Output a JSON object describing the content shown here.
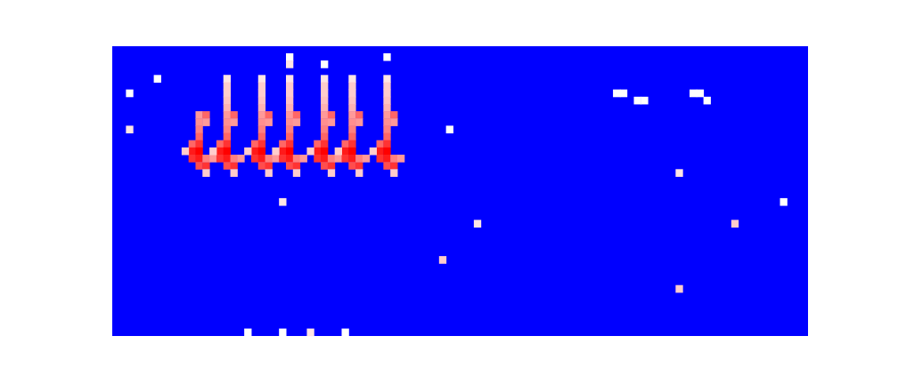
{
  "chart_data": {
    "type": "heatmap",
    "tick_labels": false,
    "columns": 100,
    "rows": 40,
    "color_range": [
      0,
      1
    ],
    "colors": [
      "#0000ff",
      "#ffffff",
      "#ff0000"
    ],
    "cells": [
      [
        12,
        30,
        0.7
      ],
      [
        12,
        29,
        0.72
      ],
      [
        12,
        28,
        0.75
      ],
      [
        13,
        30,
        0.8
      ],
      [
        13,
        29,
        0.7
      ],
      [
        11,
        26,
        0.8
      ],
      [
        11,
        25,
        0.95
      ],
      [
        11,
        24,
        0.9
      ],
      [
        12,
        27,
        0.8
      ],
      [
        12,
        26,
        0.9
      ],
      [
        12,
        25,
        1
      ],
      [
        12,
        24,
        0.95
      ],
      [
        12,
        23,
        0.85
      ],
      [
        13,
        23,
        0.9
      ],
      [
        13,
        24,
        0.75
      ],
      [
        14,
        24,
        0.7
      ],
      [
        13,
        22,
        0.6
      ],
      [
        10,
        25,
        0.6
      ],
      [
        16,
        35,
        0.55
      ],
      [
        16,
        34,
        0.6
      ],
      [
        16,
        33,
        0.6
      ],
      [
        16,
        32,
        0.62
      ],
      [
        16,
        31,
        0.65
      ],
      [
        16,
        30,
        0.7
      ],
      [
        16,
        29,
        0.72
      ],
      [
        16,
        28,
        0.75
      ],
      [
        17,
        30,
        0.8
      ],
      [
        17,
        29,
        0.7
      ],
      [
        15,
        26,
        0.8
      ],
      [
        15,
        25,
        0.95
      ],
      [
        15,
        24,
        0.9
      ],
      [
        16,
        27,
        0.8
      ],
      [
        16,
        26,
        0.9
      ],
      [
        16,
        25,
        1
      ],
      [
        16,
        24,
        0.95
      ],
      [
        16,
        23,
        0.85
      ],
      [
        17,
        23,
        0.9
      ],
      [
        17,
        24,
        0.75
      ],
      [
        18,
        24,
        0.7
      ],
      [
        17,
        22,
        0.6
      ],
      [
        14,
        25,
        0.6
      ],
      [
        21,
        35,
        0.55
      ],
      [
        21,
        34,
        0.6
      ],
      [
        21,
        33,
        0.6
      ],
      [
        21,
        32,
        0.62
      ],
      [
        21,
        31,
        0.65
      ],
      [
        21,
        30,
        0.7
      ],
      [
        21,
        29,
        0.72
      ],
      [
        21,
        28,
        0.75
      ],
      [
        22,
        30,
        0.8
      ],
      [
        22,
        29,
        0.7
      ],
      [
        20,
        26,
        0.8
      ],
      [
        20,
        25,
        0.95
      ],
      [
        20,
        24,
        0.9
      ],
      [
        21,
        27,
        0.8
      ],
      [
        21,
        26,
        0.9
      ],
      [
        21,
        25,
        1
      ],
      [
        21,
        24,
        0.95
      ],
      [
        21,
        23,
        0.85
      ],
      [
        22,
        23,
        0.9
      ],
      [
        22,
        24,
        0.75
      ],
      [
        23,
        24,
        0.7
      ],
      [
        22,
        22,
        0.6
      ],
      [
        19,
        25,
        0.6
      ],
      [
        25,
        35,
        0.55
      ],
      [
        25,
        34,
        0.6
      ],
      [
        25,
        33,
        0.6
      ],
      [
        25,
        32,
        0.62
      ],
      [
        25,
        31,
        0.65
      ],
      [
        25,
        30,
        0.7
      ],
      [
        25,
        29,
        0.72
      ],
      [
        25,
        28,
        0.75
      ],
      [
        26,
        30,
        0.8
      ],
      [
        26,
        29,
        0.7
      ],
      [
        24,
        26,
        0.8
      ],
      [
        24,
        25,
        0.95
      ],
      [
        24,
        24,
        0.9
      ],
      [
        25,
        27,
        0.8
      ],
      [
        25,
        26,
        0.9
      ],
      [
        25,
        25,
        1
      ],
      [
        25,
        24,
        0.95
      ],
      [
        25,
        23,
        0.85
      ],
      [
        26,
        23,
        0.9
      ],
      [
        26,
        24,
        0.75
      ],
      [
        27,
        24,
        0.7
      ],
      [
        26,
        22,
        0.6
      ],
      [
        23,
        25,
        0.6
      ],
      [
        30,
        35,
        0.55
      ],
      [
        30,
        34,
        0.6
      ],
      [
        30,
        33,
        0.6
      ],
      [
        30,
        32,
        0.62
      ],
      [
        30,
        31,
        0.65
      ],
      [
        30,
        30,
        0.7
      ],
      [
        30,
        29,
        0.72
      ],
      [
        30,
        28,
        0.75
      ],
      [
        31,
        30,
        0.8
      ],
      [
        31,
        29,
        0.7
      ],
      [
        29,
        26,
        0.8
      ],
      [
        29,
        25,
        0.95
      ],
      [
        29,
        24,
        0.9
      ],
      [
        30,
        27,
        0.8
      ],
      [
        30,
        26,
        0.9
      ],
      [
        30,
        25,
        1
      ],
      [
        30,
        24,
        0.95
      ],
      [
        30,
        23,
        0.85
      ],
      [
        31,
        23,
        0.9
      ],
      [
        31,
        24,
        0.75
      ],
      [
        32,
        24,
        0.7
      ],
      [
        31,
        22,
        0.6
      ],
      [
        28,
        25,
        0.6
      ],
      [
        34,
        35,
        0.55
      ],
      [
        34,
        34,
        0.6
      ],
      [
        34,
        33,
        0.6
      ],
      [
        34,
        32,
        0.62
      ],
      [
        34,
        31,
        0.65
      ],
      [
        34,
        30,
        0.7
      ],
      [
        34,
        29,
        0.72
      ],
      [
        34,
        28,
        0.75
      ],
      [
        35,
        30,
        0.8
      ],
      [
        35,
        29,
        0.7
      ],
      [
        33,
        26,
        0.8
      ],
      [
        33,
        25,
        0.95
      ],
      [
        33,
        24,
        0.9
      ],
      [
        34,
        27,
        0.8
      ],
      [
        34,
        26,
        0.9
      ],
      [
        34,
        25,
        1
      ],
      [
        34,
        24,
        0.95
      ],
      [
        34,
        23,
        0.85
      ],
      [
        35,
        23,
        0.9
      ],
      [
        35,
        24,
        0.75
      ],
      [
        36,
        24,
        0.7
      ],
      [
        35,
        22,
        0.6
      ],
      [
        32,
        25,
        0.6
      ],
      [
        39,
        35,
        0.55
      ],
      [
        39,
        34,
        0.6
      ],
      [
        39,
        33,
        0.6
      ],
      [
        39,
        32,
        0.62
      ],
      [
        39,
        31,
        0.65
      ],
      [
        39,
        30,
        0.7
      ],
      [
        39,
        29,
        0.72
      ],
      [
        39,
        28,
        0.75
      ],
      [
        40,
        30,
        0.8
      ],
      [
        40,
        29,
        0.7
      ],
      [
        38,
        26,
        0.8
      ],
      [
        38,
        25,
        0.95
      ],
      [
        38,
        24,
        0.9
      ],
      [
        39,
        27,
        0.8
      ],
      [
        39,
        26,
        0.9
      ],
      [
        39,
        25,
        1
      ],
      [
        39,
        24,
        0.95
      ],
      [
        39,
        23,
        0.85
      ],
      [
        40,
        23,
        0.9
      ],
      [
        40,
        24,
        0.75
      ],
      [
        41,
        24,
        0.7
      ],
      [
        40,
        22,
        0.6
      ],
      [
        37,
        25,
        0.6
      ],
      [
        25,
        38,
        0.5
      ],
      [
        25,
        37,
        0.55
      ],
      [
        39,
        38,
        0.5
      ],
      [
        30,
        37,
        0.5
      ],
      [
        2,
        28,
        0.55
      ],
      [
        2,
        33,
        0.5
      ],
      [
        6,
        35,
        0.5
      ],
      [
        24,
        18,
        0.55
      ],
      [
        48,
        28,
        0.5
      ],
      [
        52,
        15,
        0.55
      ],
      [
        47,
        10,
        0.6
      ],
      [
        81,
        22,
        0.55
      ],
      [
        89,
        15,
        0.6
      ],
      [
        96,
        18,
        0.5
      ],
      [
        81,
        6,
        0.6
      ],
      [
        72,
        33,
        0.5
      ],
      [
        73,
        33,
        0.5
      ],
      [
        75,
        32,
        0.5
      ],
      [
        76,
        32,
        0.5
      ],
      [
        83,
        33,
        0.5
      ],
      [
        84,
        33,
        0.5
      ],
      [
        85,
        32,
        0.5
      ],
      [
        19,
        0,
        0.5
      ],
      [
        24,
        0,
        0.5
      ],
      [
        28,
        0,
        0.55
      ],
      [
        33,
        0,
        0.5
      ]
    ]
  }
}
